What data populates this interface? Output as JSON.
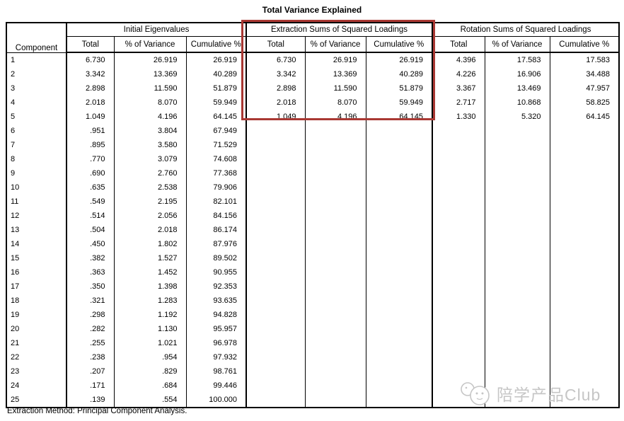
{
  "title": "Total Variance Explained",
  "footer": "Extraction Method: Principal Component Analysis.",
  "watermark": {
    "label": "陪学产品Club",
    "icon": "chat-faces-icon"
  },
  "colors": {
    "highlight_box": "#a93833",
    "table_border": "#000000",
    "watermark": "#c6c6c6",
    "background": "#ffffff"
  },
  "table": {
    "row_header": "Component",
    "groups": [
      {
        "label": "Initial Eigenvalues",
        "columns": [
          "Total",
          "% of Variance",
          "Cumulative %"
        ]
      },
      {
        "label": "Extraction Sums of Squared Loadings",
        "columns": [
          "Total",
          "% of Variance",
          "Cumulative %"
        ],
        "highlighted": true
      },
      {
        "label": "Rotation Sums of Squared Loadings",
        "columns": [
          "Total",
          "% of Variance",
          "Cumulative %"
        ]
      }
    ]
  },
  "chart_data": {
    "type": "table",
    "title": "Total Variance Explained",
    "row_header": "Component",
    "column_groups": [
      "Initial Eigenvalues",
      "Extraction Sums of Squared Loadings",
      "Rotation Sums of Squared Loadings"
    ],
    "columns_per_group": [
      "Total",
      "% of Variance",
      "Cumulative %"
    ],
    "highlight": {
      "group": "Extraction Sums of Squared Loadings",
      "rows": "1-5",
      "color": "#a93833"
    },
    "rows": [
      {
        "component": "1",
        "values": [
          "6.730",
          "26.919",
          "26.919",
          "6.730",
          "26.919",
          "26.919",
          "4.396",
          "17.583",
          "17.583"
        ]
      },
      {
        "component": "2",
        "values": [
          "3.342",
          "13.369",
          "40.289",
          "3.342",
          "13.369",
          "40.289",
          "4.226",
          "16.906",
          "34.488"
        ]
      },
      {
        "component": "3",
        "values": [
          "2.898",
          "11.590",
          "51.879",
          "2.898",
          "11.590",
          "51.879",
          "3.367",
          "13.469",
          "47.957"
        ]
      },
      {
        "component": "4",
        "values": [
          "2.018",
          "8.070",
          "59.949",
          "2.018",
          "8.070",
          "59.949",
          "2.717",
          "10.868",
          "58.825"
        ]
      },
      {
        "component": "5",
        "values": [
          "1.049",
          "4.196",
          "64.145",
          "1.049",
          "4.196",
          "64.145",
          "1.330",
          "5.320",
          "64.145"
        ]
      },
      {
        "component": "6",
        "values": [
          ".951",
          "3.804",
          "67.949",
          "",
          "",
          "",
          "",
          "",
          ""
        ]
      },
      {
        "component": "7",
        "values": [
          ".895",
          "3.580",
          "71.529",
          "",
          "",
          "",
          "",
          "",
          ""
        ]
      },
      {
        "component": "8",
        "values": [
          ".770",
          "3.079",
          "74.608",
          "",
          "",
          "",
          "",
          "",
          ""
        ]
      },
      {
        "component": "9",
        "values": [
          ".690",
          "2.760",
          "77.368",
          "",
          "",
          "",
          "",
          "",
          ""
        ]
      },
      {
        "component": "10",
        "values": [
          ".635",
          "2.538",
          "79.906",
          "",
          "",
          "",
          "",
          "",
          ""
        ]
      },
      {
        "component": "11",
        "values": [
          ".549",
          "2.195",
          "82.101",
          "",
          "",
          "",
          "",
          "",
          ""
        ]
      },
      {
        "component": "12",
        "values": [
          ".514",
          "2.056",
          "84.156",
          "",
          "",
          "",
          "",
          "",
          ""
        ]
      },
      {
        "component": "13",
        "values": [
          ".504",
          "2.018",
          "86.174",
          "",
          "",
          "",
          "",
          "",
          ""
        ]
      },
      {
        "component": "14",
        "values": [
          ".450",
          "1.802",
          "87.976",
          "",
          "",
          "",
          "",
          "",
          ""
        ]
      },
      {
        "component": "15",
        "values": [
          ".382",
          "1.527",
          "89.502",
          "",
          "",
          "",
          "",
          "",
          ""
        ]
      },
      {
        "component": "16",
        "values": [
          ".363",
          "1.452",
          "90.955",
          "",
          "",
          "",
          "",
          "",
          ""
        ]
      },
      {
        "component": "17",
        "values": [
          ".350",
          "1.398",
          "92.353",
          "",
          "",
          "",
          "",
          "",
          ""
        ]
      },
      {
        "component": "18",
        "values": [
          ".321",
          "1.283",
          "93.635",
          "",
          "",
          "",
          "",
          "",
          ""
        ]
      },
      {
        "component": "19",
        "values": [
          ".298",
          "1.192",
          "94.828",
          "",
          "",
          "",
          "",
          "",
          ""
        ]
      },
      {
        "component": "20",
        "values": [
          ".282",
          "1.130",
          "95.957",
          "",
          "",
          "",
          "",
          "",
          ""
        ]
      },
      {
        "component": "21",
        "values": [
          ".255",
          "1.021",
          "96.978",
          "",
          "",
          "",
          "",
          "",
          ""
        ]
      },
      {
        "component": "22",
        "values": [
          ".238",
          ".954",
          "97.932",
          "",
          "",
          "",
          "",
          "",
          ""
        ]
      },
      {
        "component": "23",
        "values": [
          ".207",
          ".829",
          "98.761",
          "",
          "",
          "",
          "",
          "",
          ""
        ]
      },
      {
        "component": "24",
        "values": [
          ".171",
          ".684",
          "99.446",
          "",
          "",
          "",
          "",
          "",
          ""
        ]
      },
      {
        "component": "25",
        "values": [
          ".139",
          ".554",
          "100.000",
          "",
          "",
          "",
          "",
          "",
          ""
        ]
      }
    ]
  }
}
